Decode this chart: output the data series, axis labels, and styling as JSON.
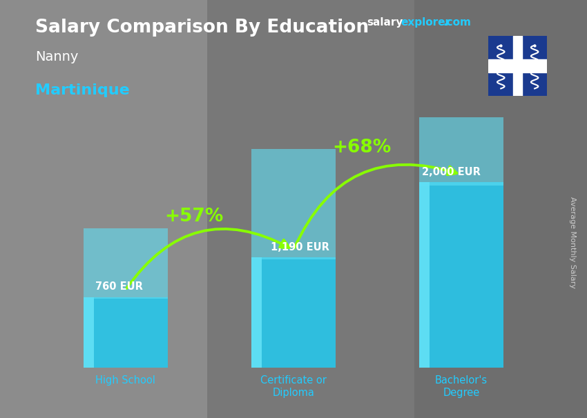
{
  "title_salary": "Salary Comparison By Education",
  "subtitle_job": "Nanny",
  "subtitle_location": "Martinique",
  "ylabel": "Average Monthly Salary",
  "categories": [
    "High School",
    "Certificate or\nDiploma",
    "Bachelor's\nDegree"
  ],
  "values": [
    760,
    1190,
    2000
  ],
  "value_labels": [
    "760 EUR",
    "1,190 EUR",
    "2,000 EUR"
  ],
  "bar_color": "#29c5e8",
  "bar_color_light": "#60dff5",
  "bar_alpha": 0.92,
  "pct_labels": [
    "+57%",
    "+68%"
  ],
  "pct_color": "#88ff00",
  "arrow_color": "#44ee00",
  "title_color": "#ffffff",
  "subtitle_job_color": "#ffffff",
  "subtitle_loc_color": "#22ccff",
  "value_label_color": "#ffffff",
  "xlabel_color": "#22ccff",
  "ylabel_color": "#cccccc",
  "site_salary_color": "#ffffff",
  "site_explorer_color": "#22ccff",
  "site_com_color": "#22ccff",
  "flag_blue": "#1a3a8f",
  "flag_white": "#ffffff",
  "bg_overlay": "#555555",
  "ylim_max": 2700,
  "x_positions": [
    1.0,
    2.3,
    3.6
  ],
  "bar_width": 0.65,
  "xlim": [
    0.3,
    4.3
  ]
}
